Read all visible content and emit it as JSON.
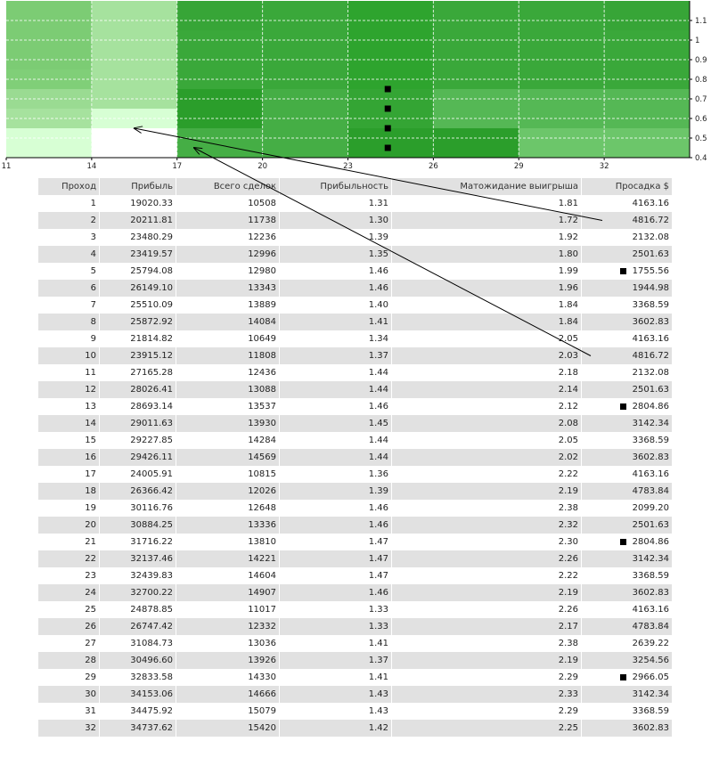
{
  "chart_data": {
    "type": "heatmap",
    "x_ticks": [
      "11",
      "14",
      "17",
      "20",
      "23",
      "26",
      "29",
      "32"
    ],
    "y_ticks": [
      "1.1",
      "1",
      "0.9",
      "0.8",
      "0.7",
      "0.6",
      "0.5",
      "0.4"
    ],
    "x_range": [
      11,
      35
    ],
    "y_range": [
      0.4,
      1.2
    ],
    "grid": true,
    "row_y_values": [
      1.1,
      1.0,
      0.9,
      0.8,
      0.7,
      0.6,
      0.5
    ],
    "col_x_values": [
      11,
      14,
      17,
      20,
      23,
      26,
      29,
      32
    ],
    "cells": [
      [
        "#7ccc74",
        "#a6e29e",
        "#37a537",
        "#3aa83a",
        "#2ea42e",
        "#3aa83a",
        "#3aa83a",
        "#37a537"
      ],
      [
        "#7ccc74",
        "#a6e29e",
        "#3aa83a",
        "#3aa83a",
        "#2ea42e",
        "#3aa83a",
        "#3aa83a",
        "#3aa83a"
      ],
      [
        "#7ccc74",
        "#a6e29e",
        "#3aa83a",
        "#3aa83a",
        "#2ea42e",
        "#3aa83a",
        "#3aa83a",
        "#3aa83a"
      ],
      [
        "#80cf78",
        "#a6e29e",
        "#3aa83a",
        "#3aa83a",
        "#2ea42e",
        "#3aa83a",
        "#3aa83a",
        "#3aa83a"
      ],
      [
        "#9adb92",
        "#a6e29e",
        "#2b9e2b",
        "#45ae45",
        "#34a534",
        "#55b855",
        "#55b855",
        "#55b855"
      ],
      [
        "#a6e29e",
        "#d7ffd4",
        "#2b9e2b",
        "#45ae45",
        "#34a534",
        "#55b855",
        "#55b855",
        "#55b855"
      ],
      [
        "#d7ffd4",
        "#ffffff",
        "#45ae45",
        "#45ae45",
        "#2b9e2b",
        "#2b9e2b",
        "#6cc66a",
        "#6cc66a"
      ]
    ],
    "markers": [
      {
        "x": 24.4,
        "y": 0.75
      },
      {
        "x": 24.4,
        "y": 0.65
      },
      {
        "x": 24.4,
        "y": 0.55
      },
      {
        "x": 24.4,
        "y": 0.45
      }
    ],
    "arrow_targets": [
      {
        "x": 15.5,
        "y": 0.55
      },
      {
        "x": 17.6,
        "y": 0.45
      }
    ]
  },
  "table": {
    "headers": [
      "Проход",
      "Прибыль",
      "Всего сделок",
      "Прибыльность",
      "Матожидание выигрыша",
      "Просадка $"
    ],
    "rows": [
      [
        "1",
        "19020.33",
        "10508",
        "1.31",
        "1.81",
        "4163.16"
      ],
      [
        "2",
        "20211.81",
        "11738",
        "1.30",
        "1.72",
        "4816.72"
      ],
      [
        "3",
        "23480.29",
        "12236",
        "1.39",
        "1.92",
        "2132.08"
      ],
      [
        "4",
        "23419.57",
        "12996",
        "1.35",
        "1.80",
        "2501.63"
      ],
      [
        "5",
        "25794.08",
        "12980",
        "1.46",
        "1.99",
        "1755.56"
      ],
      [
        "6",
        "26149.10",
        "13343",
        "1.46",
        "1.96",
        "1944.98"
      ],
      [
        "7",
        "25510.09",
        "13889",
        "1.40",
        "1.84",
        "3368.59"
      ],
      [
        "8",
        "25872.92",
        "14084",
        "1.41",
        "1.84",
        "3602.83"
      ],
      [
        "9",
        "21814.82",
        "10649",
        "1.34",
        "2.05",
        "4163.16"
      ],
      [
        "10",
        "23915.12",
        "11808",
        "1.37",
        "2.03",
        "4816.72"
      ],
      [
        "11",
        "27165.28",
        "12436",
        "1.44",
        "2.18",
        "2132.08"
      ],
      [
        "12",
        "28026.41",
        "13088",
        "1.44",
        "2.14",
        "2501.63"
      ],
      [
        "13",
        "28693.14",
        "13537",
        "1.46",
        "2.12",
        "2804.86"
      ],
      [
        "14",
        "29011.63",
        "13930",
        "1.45",
        "2.08",
        "3142.34"
      ],
      [
        "15",
        "29227.85",
        "14284",
        "1.44",
        "2.05",
        "3368.59"
      ],
      [
        "16",
        "29426.11",
        "14569",
        "1.44",
        "2.02",
        "3602.83"
      ],
      [
        "17",
        "24005.91",
        "10815",
        "1.36",
        "2.22",
        "4163.16"
      ],
      [
        "18",
        "26366.42",
        "12026",
        "1.39",
        "2.19",
        "4783.84"
      ],
      [
        "19",
        "30116.76",
        "12648",
        "1.46",
        "2.38",
        "2099.20"
      ],
      [
        "20",
        "30884.25",
        "13336",
        "1.46",
        "2.32",
        "2501.63"
      ],
      [
        "21",
        "31716.22",
        "13810",
        "1.47",
        "2.30",
        "2804.86"
      ],
      [
        "22",
        "32137.46",
        "14221",
        "1.47",
        "2.26",
        "3142.34"
      ],
      [
        "23",
        "32439.83",
        "14604",
        "1.47",
        "2.22",
        "3368.59"
      ],
      [
        "24",
        "32700.22",
        "14907",
        "1.46",
        "2.19",
        "3602.83"
      ],
      [
        "25",
        "24878.85",
        "11017",
        "1.33",
        "2.26",
        "4163.16"
      ],
      [
        "26",
        "26747.42",
        "12332",
        "1.33",
        "2.17",
        "4783.84"
      ],
      [
        "27",
        "31084.73",
        "13036",
        "1.41",
        "2.38",
        "2639.22"
      ],
      [
        "28",
        "30496.60",
        "13926",
        "1.37",
        "2.19",
        "3254.56"
      ],
      [
        "29",
        "32833.58",
        "14330",
        "1.41",
        "2.29",
        "2966.05"
      ],
      [
        "30",
        "34153.06",
        "14666",
        "1.43",
        "2.33",
        "3142.34"
      ],
      [
        "31",
        "34475.92",
        "15079",
        "1.43",
        "2.29",
        "3368.59"
      ],
      [
        "32",
        "34737.62",
        "15420",
        "1.42",
        "2.25",
        "3602.83"
      ]
    ],
    "marked_rows": [
      5,
      13,
      21,
      29
    ],
    "arrow_sources": [
      2,
      10
    ]
  }
}
